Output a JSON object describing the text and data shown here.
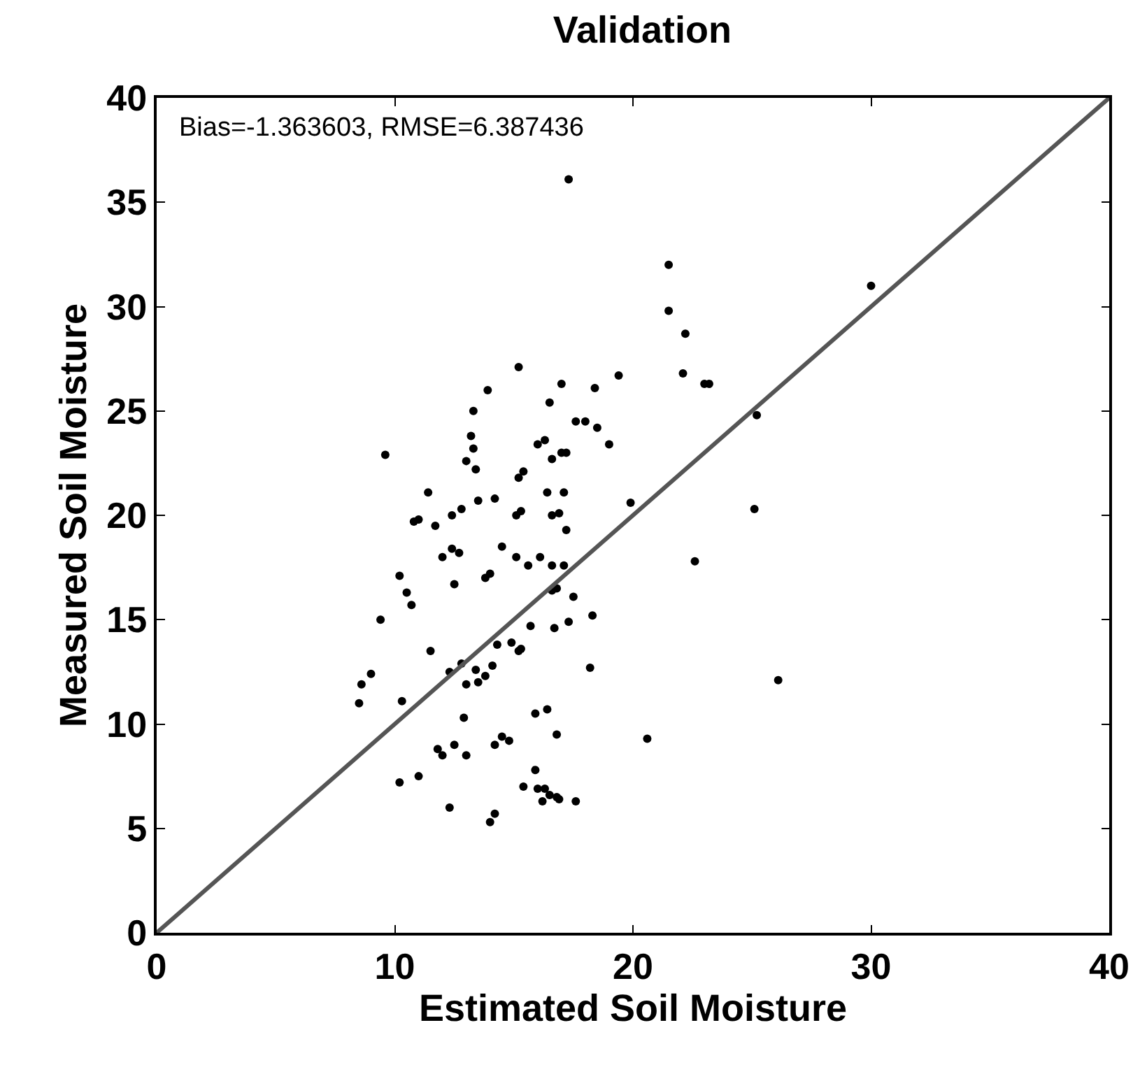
{
  "chart_data": {
    "type": "scatter",
    "title": "Validation",
    "xlabel": "Estimated Soil Moisture",
    "ylabel": "Measured Soil Moisture",
    "annotations": [
      "Bias=-1.363603, RMSE=6.387436"
    ],
    "xlim": [
      0,
      40
    ],
    "ylim": [
      0,
      40
    ],
    "xticks": [
      0,
      10,
      20,
      30,
      40
    ],
    "yticks": [
      0,
      5,
      10,
      15,
      20,
      25,
      30,
      35,
      40
    ],
    "grid": false,
    "marker": "circle",
    "series": [
      {
        "color": "#000000",
        "x": [
          30,
          21.5,
          21.5,
          22.2,
          22.1,
          23,
          23.2,
          25.2,
          25.1,
          22.6,
          26.1,
          20.6,
          17.3,
          15.2,
          13.9,
          13.3,
          17.0,
          16.5,
          18.4,
          19.4,
          13.2,
          13.3,
          13.0,
          16.3,
          16.0,
          17.6,
          18.0,
          18.5,
          19.0,
          16.6,
          17.0,
          17.2,
          15.2,
          15.4,
          13.4,
          11.4,
          12.4,
          10.8,
          11.0,
          11.7,
          12.8,
          13.5,
          14.2,
          16.4,
          17.1,
          16.6,
          16.9,
          15.3,
          15.1,
          19.9,
          17.2,
          12.4,
          12.7,
          12.0,
          14.5,
          15.1,
          15.6,
          16.1,
          16.6,
          17.1,
          17.5,
          13.8,
          14.0,
          16.6,
          16.8,
          18.3,
          12.5,
          10.2,
          10.5,
          10.7,
          9.4,
          11.5,
          8.6,
          9.0,
          8.5,
          10.3,
          12.8,
          13.4,
          13.8,
          14.3,
          14.9,
          15.2,
          15.3,
          15.7,
          16.7,
          17.3,
          12.3,
          13.0,
          13.5,
          14.1,
          12.9,
          15.9,
          16.4,
          16.8,
          18.2,
          11.8,
          12.0,
          11.0,
          10.2,
          12.5,
          13.0,
          14.2,
          14.5,
          14.8,
          12.3,
          14.0,
          14.2,
          15.4,
          16.0,
          16.3,
          16.5,
          16.8,
          16.9,
          16.2,
          17.6,
          15.9,
          9.6
        ],
        "values": [
          31,
          32,
          29.8,
          28.7,
          26.8,
          26.3,
          26.3,
          24.8,
          20.3,
          17.8,
          12.1,
          9.3,
          36.1,
          27.1,
          26,
          25,
          26.3,
          25.4,
          26.1,
          26.7,
          23.8,
          23.2,
          22.6,
          23.6,
          23.4,
          24.5,
          24.5,
          24.2,
          23.4,
          22.7,
          23.0,
          23.0,
          21.8,
          22.1,
          22.2,
          21.1,
          20.0,
          19.7,
          19.8,
          19.5,
          20.3,
          20.7,
          20.8,
          21.1,
          21.1,
          20.0,
          20.1,
          20.2,
          20.0,
          20.6,
          19.3,
          18.4,
          18.2,
          18.0,
          18.5,
          18.0,
          17.6,
          18.0,
          17.6,
          17.6,
          16.1,
          17.0,
          17.2,
          16.4,
          16.5,
          15.2,
          16.7,
          17.1,
          16.3,
          15.7,
          15.0,
          13.5,
          11.9,
          12.4,
          11.0,
          11.1,
          12.9,
          12.6,
          12.3,
          13.8,
          13.9,
          13.5,
          13.6,
          14.7,
          14.6,
          14.9,
          12.5,
          11.9,
          12.0,
          12.8,
          10.3,
          10.5,
          10.7,
          9.5,
          12.7,
          8.8,
          8.5,
          7.5,
          7.2,
          9.0,
          8.5,
          9.0,
          9.4,
          9.2,
          6.0,
          5.3,
          5.7,
          7.0,
          6.9,
          6.9,
          6.6,
          6.5,
          6.4,
          6.3,
          6.3,
          7.8,
          22.9
        ]
      },
      {
        "type": "line",
        "color": "#555555",
        "line_style": "solid",
        "marker": "none",
        "x": [
          0,
          40
        ],
        "values": [
          0,
          40
        ]
      }
    ]
  }
}
